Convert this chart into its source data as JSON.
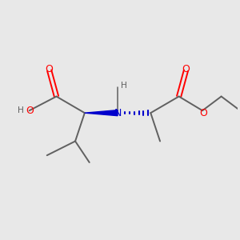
{
  "background_color": "#e8e8e8",
  "bond_color": "#606060",
  "oxygen_color": "#ff0000",
  "nitrogen_color": "#0000cc",
  "hydrogen_color": "#606060",
  "figsize": [
    3.0,
    3.0
  ],
  "dpi": 100,
  "xlim": [
    0,
    10
  ],
  "ylim": [
    0,
    10
  ],
  "bond_lw": 1.4,
  "label_fontsize": 9.0
}
